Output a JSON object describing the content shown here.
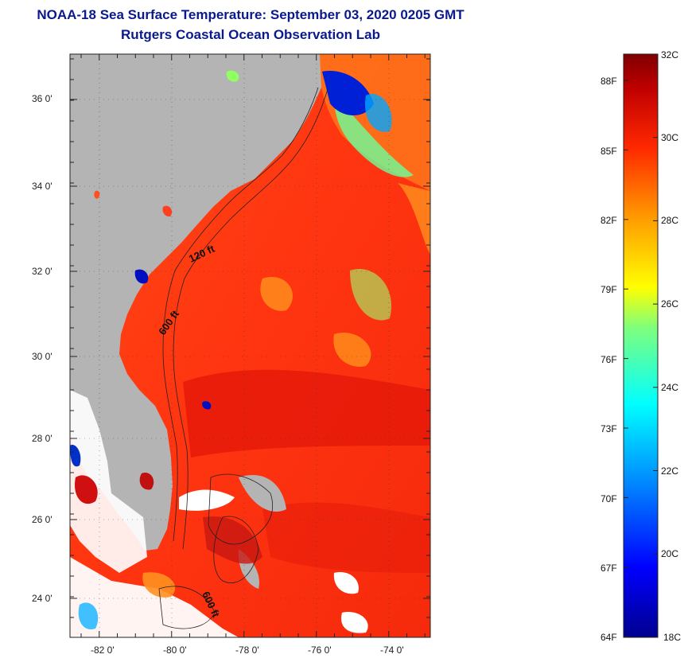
{
  "header": {
    "title": "NOAA-18 Sea Surface Temperature:  September 03, 2020 0205 GMT",
    "subtitle": "Rutgers Coastal Ocean Observation Lab"
  },
  "map": {
    "lon_labels": [
      "-82 0'",
      "-80 0'",
      "-78 0'",
      "-76 0'",
      "-74 0'"
    ],
    "lat_labels": [
      "36 0'",
      "34 0'",
      "32 0'",
      "30 0'",
      "28 0'",
      "26 0'",
      "24 0'"
    ],
    "contours": [
      "120 ft",
      "600 ft",
      "600 ft"
    ],
    "colors": {
      "land": "#b4b4b4",
      "ocean_warm": "#ff3a10",
      "ocean_hot": "#e01a0a",
      "cloud": "#ffffff"
    }
  },
  "colorbar": {
    "fahrenheit": [
      "88F",
      "85F",
      "82F",
      "79F",
      "76F",
      "73F",
      "70F",
      "67F",
      "64F"
    ],
    "celsius": [
      "32C",
      "30C",
      "28C",
      "26C",
      "24C",
      "22C",
      "20C",
      "18C"
    ]
  }
}
